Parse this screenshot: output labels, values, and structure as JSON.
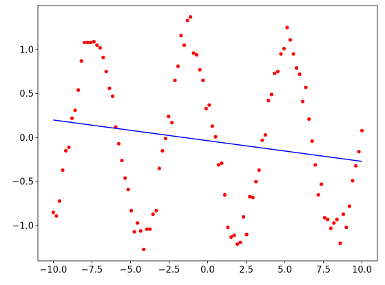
{
  "chart_data": {
    "type": "scatter",
    "xlim": [
      -11,
      11
    ],
    "ylim": [
      -1.4,
      1.5
    ],
    "xticks": [
      {
        "value": -10,
        "label": "−10.0"
      },
      {
        "value": -7.5,
        "label": "−7.5"
      },
      {
        "value": -5,
        "label": "−5.0"
      },
      {
        "value": -2.5,
        "label": "−2.5"
      },
      {
        "value": 0,
        "label": "0.0"
      },
      {
        "value": 2.5,
        "label": "2.5"
      },
      {
        "value": 5,
        "label": "5.0"
      },
      {
        "value": 7.5,
        "label": "7.5"
      },
      {
        "value": 10,
        "label": "10.0"
      }
    ],
    "yticks": [
      {
        "value": -1,
        "label": "−1.0"
      },
      {
        "value": -0.5,
        "label": "−0.5"
      },
      {
        "value": 0,
        "label": "0.0"
      },
      {
        "value": 0.5,
        "label": "0.5"
      },
      {
        "value": 1,
        "label": "1.0"
      }
    ],
    "series": [
      {
        "style": "points",
        "color": "#ff0000",
        "x": [
          -10,
          -9.8,
          -9.6,
          -9.39,
          -9.19,
          -8.99,
          -8.79,
          -8.59,
          -8.38,
          -8.18,
          -7.98,
          -7.78,
          -7.58,
          -7.37,
          -7.17,
          -6.97,
          -6.77,
          -6.57,
          -6.36,
          -6.16,
          -5.96,
          -5.76,
          -5.56,
          -5.35,
          -5.15,
          -4.95,
          -4.75,
          -4.55,
          -4.34,
          -4.14,
          -3.94,
          -3.74,
          -3.54,
          -3.33,
          -3.13,
          -2.93,
          -2.73,
          -2.53,
          -2.32,
          -2.12,
          -1.92,
          -1.72,
          -1.52,
          -1.31,
          -1.11,
          -0.91,
          -0.71,
          -0.51,
          -0.3,
          -0.1,
          0.1,
          0.3,
          0.51,
          0.71,
          0.91,
          1.11,
          1.31,
          1.52,
          1.72,
          1.92,
          2.12,
          2.32,
          2.53,
          2.73,
          2.93,
          3.13,
          3.33,
          3.54,
          3.74,
          3.94,
          4.14,
          4.34,
          4.55,
          4.75,
          4.95,
          5.15,
          5.35,
          5.56,
          5.76,
          5.96,
          6.16,
          6.36,
          6.57,
          6.77,
          6.97,
          7.17,
          7.37,
          7.58,
          7.78,
          7.98,
          8.18,
          8.38,
          8.59,
          8.79,
          8.99,
          9.19,
          9.39,
          9.6,
          9.8,
          10
        ],
        "values": [
          -0.85,
          -0.89,
          -0.72,
          -0.37,
          -0.15,
          -0.11,
          0.22,
          0.31,
          0.54,
          0.87,
          1.08,
          1.08,
          1.08,
          1.09,
          1.05,
          1.02,
          0.91,
          0.75,
          0.56,
          0.47,
          0.12,
          -0.07,
          -0.26,
          -0.46,
          -0.59,
          -0.83,
          -1.07,
          -0.97,
          -1.06,
          -1.27,
          -1.04,
          -1.04,
          -0.87,
          -0.83,
          -0.35,
          -0.15,
          -0.01,
          0.24,
          0.17,
          0.65,
          0.81,
          1.16,
          1.05,
          1.33,
          1.37,
          0.96,
          0.94,
          0.77,
          0.65,
          0.33,
          0.37,
          0.13,
          0.01,
          -0.31,
          -0.29,
          -0.65,
          -1.02,
          -1.13,
          -1.11,
          -1.21,
          -1.19,
          -0.9,
          -1.1,
          -0.67,
          -0.68,
          -0.5,
          -0.37,
          -0.03,
          0.03,
          0.42,
          0.49,
          0.73,
          0.75,
          0.95,
          1.01,
          1.25,
          1.11,
          0.95,
          0.79,
          0.72,
          0.41,
          0.57,
          0.21,
          -0.04,
          -0.31,
          -0.65,
          -0.53,
          -0.91,
          -0.93,
          -1.03,
          -0.97,
          -0.93,
          -1.2,
          -0.87,
          -1.02,
          -0.78,
          -0.49,
          -0.32,
          -0.16,
          0.08
        ]
      },
      {
        "style": "line",
        "color": "#0000ff",
        "x": [
          -10,
          10
        ],
        "values": [
          0.2,
          -0.27
        ]
      }
    ]
  }
}
